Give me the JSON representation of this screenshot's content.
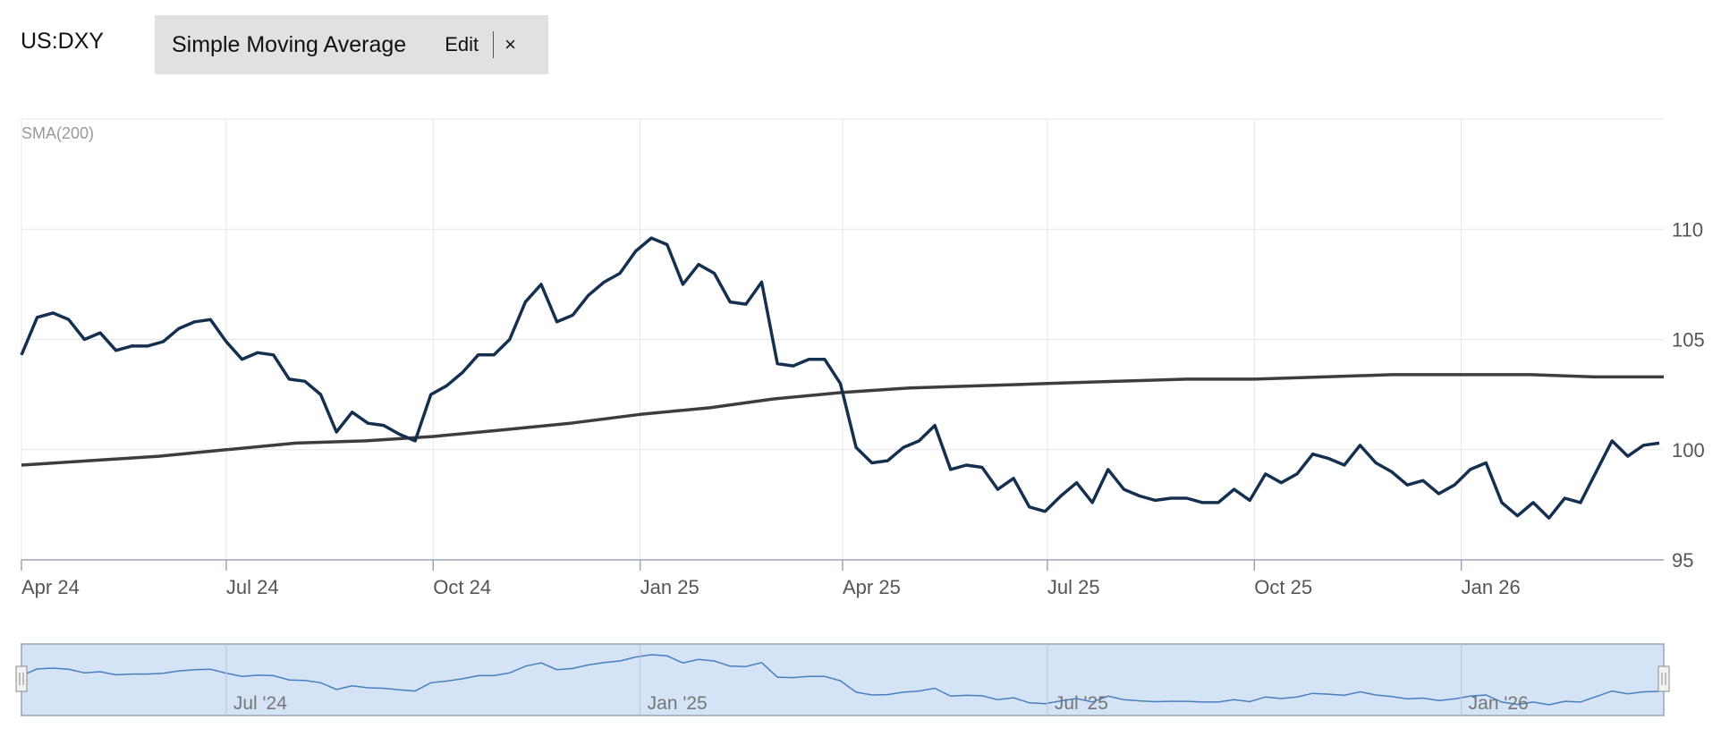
{
  "header": {
    "symbol": "US:DXY",
    "study_name": "Simple Moving Average",
    "edit_label": "Edit",
    "close_label": "×"
  },
  "colors": {
    "price_line": "#15304f",
    "sma_line": "#3d3d3d",
    "navigator_fill": "#d4e3f5",
    "navigator_line": "#4a7fbf",
    "grid": "#e5e5e5"
  },
  "chart_data": {
    "type": "line",
    "title": "",
    "indicator_label": "SMA(200)",
    "x_ticks": [
      "Apr 24",
      "Jul 24",
      "Oct 24",
      "Jan 25",
      "Apr 25",
      "Jul 25",
      "Oct 25",
      "Jan 26"
    ],
    "y_ticks": [
      95,
      100,
      105,
      110
    ],
    "ylim": [
      95,
      115
    ],
    "xlim": [
      "2024-04-01",
      "2026-04-01"
    ],
    "grid": true,
    "series": [
      {
        "key": "price",
        "points": [
          [
            "2024-04-01",
            104.3
          ],
          [
            "2024-04-08",
            106.0
          ],
          [
            "2024-04-15",
            106.2
          ],
          [
            "2024-04-22",
            105.9
          ],
          [
            "2024-04-29",
            105.0
          ],
          [
            "2024-05-06",
            105.3
          ],
          [
            "2024-05-13",
            104.5
          ],
          [
            "2024-05-20",
            104.7
          ],
          [
            "2024-05-27",
            104.7
          ],
          [
            "2024-06-03",
            104.9
          ],
          [
            "2024-06-10",
            105.5
          ],
          [
            "2024-06-17",
            105.8
          ],
          [
            "2024-06-24",
            105.9
          ],
          [
            "2024-07-01",
            104.9
          ],
          [
            "2024-07-08",
            104.1
          ],
          [
            "2024-07-15",
            104.4
          ],
          [
            "2024-07-22",
            104.3
          ],
          [
            "2024-07-29",
            103.2
          ],
          [
            "2024-08-05",
            103.1
          ],
          [
            "2024-08-12",
            102.5
          ],
          [
            "2024-08-19",
            100.8
          ],
          [
            "2024-08-26",
            101.7
          ],
          [
            "2024-09-02",
            101.2
          ],
          [
            "2024-09-09",
            101.1
          ],
          [
            "2024-09-16",
            100.7
          ],
          [
            "2024-09-23",
            100.4
          ],
          [
            "2024-09-30",
            102.5
          ],
          [
            "2024-10-07",
            102.9
          ],
          [
            "2024-10-14",
            103.5
          ],
          [
            "2024-10-21",
            104.3
          ],
          [
            "2024-10-28",
            104.3
          ],
          [
            "2024-11-04",
            105.0
          ],
          [
            "2024-11-11",
            106.7
          ],
          [
            "2024-11-18",
            107.5
          ],
          [
            "2024-11-25",
            105.8
          ],
          [
            "2024-12-02",
            106.1
          ],
          [
            "2024-12-09",
            107.0
          ],
          [
            "2024-12-16",
            107.6
          ],
          [
            "2024-12-23",
            108.0
          ],
          [
            "2024-12-30",
            109.0
          ],
          [
            "2025-01-06",
            109.6
          ],
          [
            "2025-01-13",
            109.3
          ],
          [
            "2025-01-20",
            107.5
          ],
          [
            "2025-01-27",
            108.4
          ],
          [
            "2025-02-03",
            108.0
          ],
          [
            "2025-02-10",
            106.7
          ],
          [
            "2025-02-17",
            106.6
          ],
          [
            "2025-02-24",
            107.6
          ],
          [
            "2025-03-03",
            103.9
          ],
          [
            "2025-03-10",
            103.8
          ],
          [
            "2025-03-17",
            104.1
          ],
          [
            "2025-03-24",
            104.1
          ],
          [
            "2025-03-31",
            103.0
          ],
          [
            "2025-04-07",
            100.1
          ],
          [
            "2025-04-14",
            99.4
          ],
          [
            "2025-04-21",
            99.5
          ],
          [
            "2025-04-28",
            100.1
          ],
          [
            "2025-05-05",
            100.4
          ],
          [
            "2025-05-12",
            101.1
          ],
          [
            "2025-05-19",
            99.1
          ],
          [
            "2025-05-26",
            99.3
          ],
          [
            "2025-06-02",
            99.2
          ],
          [
            "2025-06-09",
            98.2
          ],
          [
            "2025-06-16",
            98.7
          ],
          [
            "2025-06-23",
            97.4
          ],
          [
            "2025-06-30",
            97.2
          ],
          [
            "2025-07-07",
            97.9
          ],
          [
            "2025-07-14",
            98.5
          ],
          [
            "2025-07-21",
            97.6
          ],
          [
            "2025-07-28",
            99.1
          ],
          [
            "2025-08-04",
            98.2
          ],
          [
            "2025-08-11",
            97.9
          ],
          [
            "2025-08-18",
            97.7
          ],
          [
            "2025-08-25",
            97.8
          ],
          [
            "2025-09-01",
            97.8
          ],
          [
            "2025-09-08",
            97.6
          ],
          [
            "2025-09-15",
            97.6
          ],
          [
            "2025-09-22",
            98.2
          ],
          [
            "2025-09-29",
            97.7
          ],
          [
            "2025-10-06",
            98.9
          ],
          [
            "2025-10-13",
            98.5
          ],
          [
            "2025-10-20",
            98.9
          ],
          [
            "2025-10-27",
            99.8
          ],
          [
            "2025-11-03",
            99.6
          ],
          [
            "2025-11-10",
            99.3
          ],
          [
            "2025-11-17",
            100.2
          ],
          [
            "2025-11-24",
            99.4
          ],
          [
            "2025-12-01",
            99.0
          ],
          [
            "2025-12-08",
            98.4
          ],
          [
            "2025-12-15",
            98.6
          ],
          [
            "2025-12-22",
            98.0
          ],
          [
            "2025-12-29",
            98.4
          ],
          [
            "2026-01-05",
            99.1
          ],
          [
            "2026-01-12",
            99.4
          ],
          [
            "2026-01-19",
            97.6
          ],
          [
            "2026-01-26",
            97.0
          ],
          [
            "2026-02-02",
            97.6
          ],
          [
            "2026-02-09",
            96.9
          ],
          [
            "2026-02-16",
            97.8
          ],
          [
            "2026-02-23",
            97.6
          ],
          [
            "2026-03-02",
            99.0
          ],
          [
            "2026-03-09",
            100.4
          ],
          [
            "2026-03-16",
            99.7
          ],
          [
            "2026-03-23",
            100.2
          ],
          [
            "2026-03-30",
            100.3
          ]
        ]
      },
      {
        "key": "sma",
        "points": [
          [
            "2024-04-01",
            99.3
          ],
          [
            "2024-05-01",
            99.5
          ],
          [
            "2024-06-01",
            99.7
          ],
          [
            "2024-07-01",
            100.0
          ],
          [
            "2024-08-01",
            100.3
          ],
          [
            "2024-09-01",
            100.4
          ],
          [
            "2024-10-01",
            100.6
          ],
          [
            "2024-11-01",
            100.9
          ],
          [
            "2024-12-01",
            101.2
          ],
          [
            "2025-01-01",
            101.6
          ],
          [
            "2025-02-01",
            101.9
          ],
          [
            "2025-03-01",
            102.3
          ],
          [
            "2025-04-01",
            102.6
          ],
          [
            "2025-05-01",
            102.8
          ],
          [
            "2025-06-01",
            102.9
          ],
          [
            "2025-07-01",
            103.0
          ],
          [
            "2025-08-01",
            103.1
          ],
          [
            "2025-09-01",
            103.2
          ],
          [
            "2025-10-01",
            103.2
          ],
          [
            "2025-11-01",
            103.3
          ],
          [
            "2025-12-01",
            103.4
          ],
          [
            "2026-01-01",
            103.4
          ],
          [
            "2026-02-01",
            103.4
          ],
          [
            "2026-03-01",
            103.3
          ],
          [
            "2026-04-01",
            103.3
          ]
        ]
      }
    ],
    "navigator": {
      "ticks": [
        "Jul '24",
        "Jan '25",
        "Jul '25",
        "Jan '26"
      ]
    }
  }
}
